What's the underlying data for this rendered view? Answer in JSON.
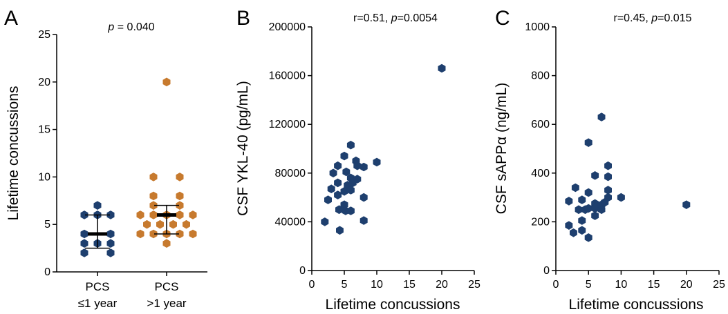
{
  "colors": {
    "navy": "#1e3f6e",
    "orange": "#c77a2e",
    "axis": "#000000"
  },
  "chart_data": [
    {
      "panel": "A",
      "type": "scatter",
      "stat": {
        "italic": "p",
        "rest": " = 0.040"
      },
      "ylabel": "Lifetime concussions",
      "ylim": [
        0,
        25
      ],
      "yticks": [
        "0",
        "5",
        "10",
        "15",
        "20",
        "25"
      ],
      "categories": [
        "PCS\n≤1 year",
        "PCS\n>1 year"
      ],
      "groups": [
        {
          "category": "PCS\n≤1 year",
          "color": "#1e3f6e",
          "values": [
            7,
            6,
            6,
            6,
            4,
            4,
            3,
            3,
            3,
            2,
            2
          ],
          "median": 4,
          "iqr": [
            2.5,
            6
          ]
        },
        {
          "category": "PCS\n>1 year",
          "color": "#c77a2e",
          "values": [
            20,
            10,
            10,
            8,
            8,
            7,
            7,
            6,
            6,
            6,
            6,
            6,
            5,
            5,
            5,
            5,
            4,
            4,
            4,
            4,
            4,
            3
          ],
          "median": 6,
          "iqr": [
            4,
            7
          ]
        }
      ]
    },
    {
      "panel": "B",
      "type": "scatter",
      "stat": {
        "pre": "r=0.51, ",
        "italic": "p",
        "rest": "=0.0054"
      },
      "xlabel": "Lifetime concussions",
      "ylabel": "CSF YKL-40 (pg/mL)",
      "xlim": [
        0,
        25
      ],
      "ylim": [
        0,
        200000
      ],
      "xticks": [
        "0",
        "5",
        "10",
        "15",
        "20",
        "25"
      ],
      "yticks": [
        "0",
        "40000",
        "80000",
        "120000",
        "160000",
        "200000"
      ],
      "points": [
        {
          "x": 2,
          "y": 40000
        },
        {
          "x": 2.5,
          "y": 58000
        },
        {
          "x": 3,
          "y": 67000
        },
        {
          "x": 3.3,
          "y": 80000
        },
        {
          "x": 4,
          "y": 86000
        },
        {
          "x": 4,
          "y": 72000
        },
        {
          "x": 4,
          "y": 62000
        },
        {
          "x": 4.2,
          "y": 50000
        },
        {
          "x": 4.3,
          "y": 33000
        },
        {
          "x": 5,
          "y": 94000
        },
        {
          "x": 5,
          "y": 65000
        },
        {
          "x": 5,
          "y": 54000
        },
        {
          "x": 5.2,
          "y": 49000
        },
        {
          "x": 5.3,
          "y": 81000
        },
        {
          "x": 5.5,
          "y": 70000
        },
        {
          "x": 6,
          "y": 103000
        },
        {
          "x": 6,
          "y": 76000
        },
        {
          "x": 6,
          "y": 66000
        },
        {
          "x": 6,
          "y": 49000
        },
        {
          "x": 6.3,
          "y": 72000
        },
        {
          "x": 6.8,
          "y": 90000
        },
        {
          "x": 7,
          "y": 86000
        },
        {
          "x": 7,
          "y": 75000
        },
        {
          "x": 8,
          "y": 85000
        },
        {
          "x": 8,
          "y": 60000
        },
        {
          "x": 8,
          "y": 41000
        },
        {
          "x": 10,
          "y": 89000
        },
        {
          "x": 20,
          "y": 166000
        }
      ]
    },
    {
      "panel": "C",
      "type": "scatter",
      "stat": {
        "pre": "r=0.45, ",
        "italic": "p",
        "rest": "=0.015"
      },
      "xlabel": "Lifetime concussions",
      "ylabel": "CSF sAPPα (ng/mL)",
      "xlim": [
        0,
        25
      ],
      "ylim": [
        0,
        1000
      ],
      "xticks": [
        "0",
        "5",
        "10",
        "15",
        "20",
        "25"
      ],
      "yticks": [
        "0",
        "200",
        "400",
        "600",
        "800",
        "1000"
      ],
      "points": [
        {
          "x": 2,
          "y": 285
        },
        {
          "x": 2,
          "y": 185
        },
        {
          "x": 2.7,
          "y": 155
        },
        {
          "x": 3,
          "y": 340
        },
        {
          "x": 3.5,
          "y": 250
        },
        {
          "x": 4,
          "y": 290
        },
        {
          "x": 4,
          "y": 205
        },
        {
          "x": 4,
          "y": 165
        },
        {
          "x": 4.5,
          "y": 250
        },
        {
          "x": 5,
          "y": 525
        },
        {
          "x": 5,
          "y": 320
        },
        {
          "x": 5,
          "y": 255
        },
        {
          "x": 5,
          "y": 135
        },
        {
          "x": 6,
          "y": 390
        },
        {
          "x": 6,
          "y": 275
        },
        {
          "x": 6,
          "y": 255
        },
        {
          "x": 6,
          "y": 225
        },
        {
          "x": 6.3,
          "y": 265
        },
        {
          "x": 7,
          "y": 630
        },
        {
          "x": 7,
          "y": 250
        },
        {
          "x": 7,
          "y": 270
        },
        {
          "x": 7.5,
          "y": 280
        },
        {
          "x": 8,
          "y": 430
        },
        {
          "x": 8,
          "y": 385
        },
        {
          "x": 8,
          "y": 330
        },
        {
          "x": 8,
          "y": 300
        },
        {
          "x": 10,
          "y": 300
        },
        {
          "x": 20,
          "y": 270
        }
      ]
    }
  ]
}
